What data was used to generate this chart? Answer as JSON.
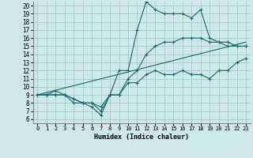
{
  "title": "",
  "xlabel": "Humidex (Indice chaleur)",
  "bg_color": "#cce8e8",
  "grid_color": "#aacfcf",
  "line_color": "#1a6b6b",
  "xlim": [
    -0.5,
    23.5
  ],
  "ylim": [
    5.5,
    20.5
  ],
  "xticks": [
    0,
    1,
    2,
    3,
    4,
    5,
    6,
    7,
    8,
    9,
    10,
    11,
    12,
    13,
    14,
    15,
    16,
    17,
    18,
    19,
    20,
    21,
    22,
    23
  ],
  "yticks": [
    6,
    7,
    8,
    9,
    10,
    11,
    12,
    13,
    14,
    15,
    16,
    17,
    18,
    19,
    20
  ],
  "line1_x": [
    0,
    1,
    2,
    3,
    4,
    5,
    6,
    7,
    8,
    9,
    10,
    11,
    12,
    13,
    14,
    15,
    16,
    17,
    18,
    19,
    20,
    21,
    22,
    23
  ],
  "line1_y": [
    9,
    9,
    9,
    9,
    8,
    8,
    7.5,
    6.5,
    9,
    9,
    10.5,
    10.5,
    11.5,
    12,
    11.5,
    11.5,
    12,
    11.5,
    11.5,
    11,
    12,
    12,
    13,
    13.5
  ],
  "line2_x": [
    0,
    1,
    2,
    3,
    4,
    5,
    6,
    7,
    8,
    9,
    10,
    11,
    12,
    13,
    14,
    15,
    16,
    17,
    18,
    19,
    20,
    21,
    22,
    23
  ],
  "line2_y": [
    9,
    9,
    9.5,
    9,
    8.5,
    8,
    8,
    7,
    9,
    12,
    12,
    17,
    20.5,
    19.5,
    19,
    19,
    19,
    18.5,
    19.5,
    16,
    15.5,
    15,
    15,
    15
  ],
  "line3_x": [
    0,
    1,
    2,
    3,
    4,
    5,
    6,
    7,
    8,
    9,
    10,
    11,
    12,
    13,
    14,
    15,
    16,
    17,
    18,
    19,
    20,
    21,
    22,
    23
  ],
  "line3_y": [
    9,
    9,
    9,
    9,
    8.5,
    8,
    8,
    7.5,
    9,
    9,
    11,
    12,
    14,
    15,
    15.5,
    15.5,
    16,
    16,
    16,
    15.5,
    15.5,
    15.5,
    15,
    15
  ],
  "line4_x": [
    0,
    23
  ],
  "line4_y": [
    9,
    15.5
  ]
}
